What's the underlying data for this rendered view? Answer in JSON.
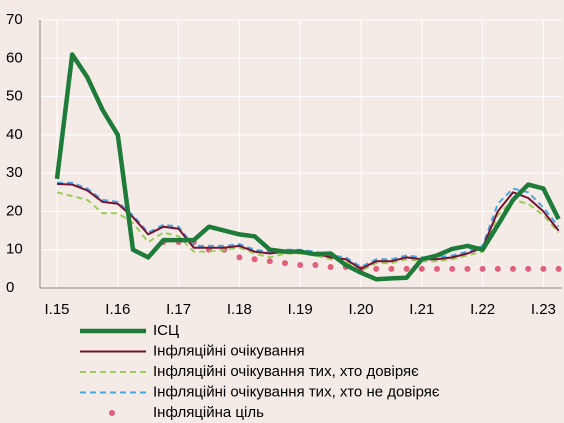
{
  "chart_data": {
    "type": "line",
    "categories": [
      "I.15",
      null,
      null,
      null,
      "I.16",
      null,
      null,
      null,
      "I.17",
      null,
      null,
      null,
      "I.18",
      null,
      null,
      null,
      "I.19",
      null,
      null,
      null,
      "I.20",
      null,
      null,
      null,
      "I.21",
      null,
      null,
      null,
      "I.22",
      null,
      null,
      null,
      "I.23",
      null
    ],
    "series": [
      {
        "name": "ІСЦ",
        "color": "#1e7b3a",
        "style": "thick",
        "values": [
          28.5,
          61,
          55,
          46.5,
          40,
          10,
          8,
          12.5,
          12.5,
          12.5,
          16,
          15,
          14,
          13.5,
          10,
          9.5,
          9.5,
          8.8,
          9,
          6,
          4,
          2.3,
          2.5,
          2.7,
          7.5,
          8.5,
          10.2,
          11,
          10,
          16.4,
          23,
          27,
          26,
          18
        ]
      },
      {
        "name": "Інфляційні очікування",
        "color": "#7a1030",
        "style": "solid",
        "values": [
          27.2,
          27,
          25.5,
          22.5,
          22,
          18.5,
          14,
          16,
          15.5,
          10.5,
          10.5,
          10.5,
          11,
          9.5,
          9,
          9.5,
          9.5,
          9,
          8,
          7.5,
          5,
          7,
          7,
          8,
          7.5,
          7.5,
          8,
          9,
          10.5,
          20,
          25,
          23.5,
          20,
          15
        ]
      },
      {
        "name": "Інфляційні очікування тих, хто довіряє",
        "color": "#9acd5a",
        "style": "dashed",
        "values": [
          25,
          24,
          23,
          19.5,
          19.5,
          17,
          12,
          14.5,
          13.5,
          9.5,
          9.5,
          10,
          10.5,
          9,
          8,
          9,
          9,
          8.5,
          7.5,
          7,
          4.5,
          6.5,
          6.5,
          7.5,
          7,
          7,
          7.5,
          8.5,
          9.5,
          19,
          23,
          22,
          19,
          14.5
        ]
      },
      {
        "name": "Інфляційні очікування тих, хто не довіряє",
        "color": "#4aa8e0",
        "style": "dashed",
        "values": [
          27.5,
          27.5,
          26,
          23,
          22.5,
          19,
          14.5,
          16.5,
          16,
          11,
          11,
          11,
          11.5,
          10,
          9.5,
          10,
          10,
          9.5,
          8.5,
          8,
          5.5,
          7.5,
          7.5,
          8.5,
          8,
          8,
          8.5,
          9.5,
          11,
          22,
          26,
          25,
          21,
          16
        ]
      },
      {
        "name": "Інфляційна ціль",
        "color": "#e0607a",
        "style": "dots",
        "values": [
          null,
          null,
          null,
          null,
          null,
          null,
          null,
          12,
          12,
          12,
          10,
          10,
          8,
          7.5,
          7,
          6.5,
          6,
          6,
          5.5,
          5.5,
          5,
          5,
          5,
          5,
          5,
          5,
          5,
          5,
          5,
          5,
          5,
          5,
          5,
          5
        ]
      }
    ],
    "ylim": [
      0,
      70
    ],
    "yticks": [
      0,
      10,
      20,
      30,
      40,
      50,
      60,
      70
    ],
    "grid": true
  }
}
